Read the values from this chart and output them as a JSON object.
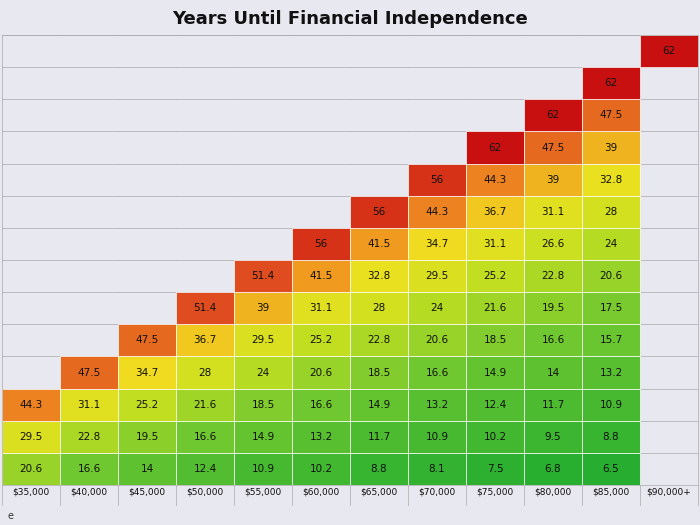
{
  "title": "Years Until Financial Independence",
  "x_labels": [
    "$35,000",
    "$40,000",
    "$45,000",
    "$50,000",
    "$55,000",
    "$60,000",
    "$65,000",
    "$70,000",
    "$75,000",
    "$80,000",
    "$85,000",
    "$90,000+"
  ],
  "note": "e",
  "table": [
    [
      20.6,
      16.6,
      14.0,
      12.4,
      10.9,
      10.2,
      8.8,
      8.1,
      7.5,
      6.8,
      6.5,
      null
    ],
    [
      29.5,
      22.8,
      19.5,
      16.6,
      14.9,
      13.2,
      11.7,
      10.9,
      10.2,
      9.5,
      8.8,
      null
    ],
    [
      44.3,
      31.1,
      25.2,
      21.6,
      18.5,
      16.6,
      14.9,
      13.2,
      12.4,
      11.7,
      10.9,
      null
    ],
    [
      null,
      47.5,
      34.7,
      28.0,
      24.0,
      20.6,
      18.5,
      16.6,
      14.9,
      14.0,
      13.2,
      null
    ],
    [
      null,
      null,
      47.5,
      36.7,
      29.5,
      25.2,
      22.8,
      20.6,
      18.5,
      16.6,
      15.7,
      null
    ],
    [
      null,
      null,
      null,
      51.4,
      39.0,
      31.1,
      28.0,
      24.0,
      21.6,
      19.5,
      17.5,
      null
    ],
    [
      null,
      null,
      null,
      null,
      51.4,
      41.5,
      32.8,
      29.5,
      25.2,
      22.8,
      20.6,
      null
    ],
    [
      null,
      null,
      null,
      null,
      null,
      56.0,
      41.5,
      34.7,
      31.1,
      26.6,
      24.0,
      null
    ],
    [
      null,
      null,
      null,
      null,
      null,
      null,
      56.0,
      44.3,
      36.7,
      31.1,
      28.0,
      null
    ],
    [
      null,
      null,
      null,
      null,
      null,
      null,
      null,
      56.0,
      44.3,
      39.0,
      32.8,
      null
    ],
    [
      null,
      null,
      null,
      null,
      null,
      null,
      null,
      null,
      62.0,
      47.5,
      39.0,
      null
    ],
    [
      null,
      null,
      null,
      null,
      null,
      null,
      null,
      null,
      null,
      62.0,
      47.5,
      null
    ],
    [
      null,
      null,
      null,
      null,
      null,
      null,
      null,
      null,
      null,
      null,
      62.0,
      null
    ],
    [
      null,
      null,
      null,
      null,
      null,
      null,
      null,
      null,
      null,
      null,
      null,
      62.0
    ]
  ],
  "nrows": 14,
  "ncols": 12,
  "color_min": 6.5,
  "color_max": 62.0,
  "bg_color": "#e8e8f0",
  "title_fontsize": 13,
  "value_fontsize": 7.5
}
